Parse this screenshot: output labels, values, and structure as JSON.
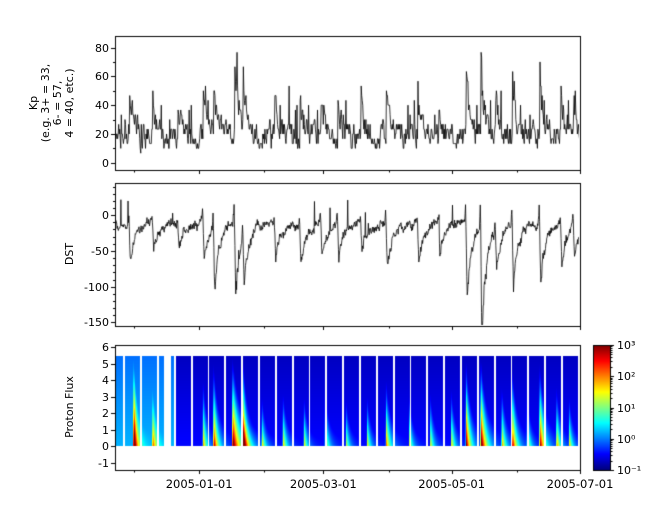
{
  "figure": {
    "background": "#ffffff",
    "x_axis": {
      "min_day": -40,
      "max_day": 181,
      "major_ticks": [
        {
          "day": 0,
          "label": "2005-01-01"
        },
        {
          "day": 59,
          "label": "2005-03-01"
        },
        {
          "day": 120,
          "label": "2005-05-01"
        },
        {
          "day": 181,
          "label": "2005-07-01"
        }
      ],
      "minor_tick_days": [
        -31,
        31,
        90,
        151
      ]
    }
  },
  "chart_data": [
    {
      "id": "kp",
      "type": "line",
      "ylabel_lines": [
        "Kp",
        "(e.g. 3+ = 33,",
        "6- = 57,",
        "4 = 40, etc.)"
      ],
      "ylim": [
        -5,
        88
      ],
      "yticks": [
        0,
        20,
        40,
        60,
        80
      ],
      "yminor_step": 10,
      "line_color": "#000000",
      "synthesis": {
        "seed": 20050101,
        "step_days": 0.25,
        "base_level": 20,
        "quantize": 3.3333
      },
      "storms": [
        {
          "day": -33,
          "kp": 38
        },
        {
          "day": -22,
          "kp": 30
        },
        {
          "day": -10,
          "kp": 25
        },
        {
          "day": 2,
          "kp": 40
        },
        {
          "day": 7,
          "kp": 48
        },
        {
          "day": 17,
          "kp": 60
        },
        {
          "day": 21,
          "kp": 45
        },
        {
          "day": 36,
          "kp": 30
        },
        {
          "day": 48,
          "kp": 35
        },
        {
          "day": 58,
          "kp": 30
        },
        {
          "day": 66,
          "kp": 35
        },
        {
          "day": 77,
          "kp": 30
        },
        {
          "day": 89,
          "kp": 48
        },
        {
          "day": 104,
          "kp": 32
        },
        {
          "day": 114,
          "kp": 28
        },
        {
          "day": 127,
          "kp": 60
        },
        {
          "day": 134,
          "kp": 62
        },
        {
          "day": 141,
          "kp": 35
        },
        {
          "day": 149,
          "kp": 48
        },
        {
          "day": 162,
          "kp": 55
        },
        {
          "day": 172,
          "kp": 38
        },
        {
          "day": 178,
          "kp": 30
        }
      ]
    },
    {
      "id": "dst",
      "type": "line",
      "ylabel_lines": [
        "DST"
      ],
      "ylim": [
        -155,
        45
      ],
      "yticks": [
        0,
        -50,
        -100,
        -150
      ],
      "yminor_step": 10,
      "line_color": "#000000",
      "synthesis": {
        "seed": 77,
        "step_days": 0.2,
        "base_level": -12,
        "recovery_days": 2.3
      },
      "storms": [
        {
          "day": -33,
          "depth": 55,
          "ssc": 15
        },
        {
          "day": -22,
          "depth": 45,
          "ssc": 10
        },
        {
          "day": -10,
          "depth": 38,
          "ssc": 8
        },
        {
          "day": 2,
          "depth": 60,
          "ssc": 15
        },
        {
          "day": 7,
          "depth": 95,
          "ssc": 25
        },
        {
          "day": 17,
          "depth": 105,
          "ssc": 30
        },
        {
          "day": 21,
          "depth": 80,
          "ssc": 20
        },
        {
          "day": 36,
          "depth": 55,
          "ssc": 10
        },
        {
          "day": 48,
          "depth": 60,
          "ssc": 12
        },
        {
          "day": 58,
          "depth": 48,
          "ssc": 10
        },
        {
          "day": 66,
          "depth": 55,
          "ssc": 10
        },
        {
          "day": 77,
          "depth": 45,
          "ssc": 8
        },
        {
          "day": 89,
          "depth": 70,
          "ssc": 18
        },
        {
          "day": 104,
          "depth": 55,
          "ssc": 10
        },
        {
          "day": 114,
          "depth": 45,
          "ssc": 8
        },
        {
          "day": 127,
          "depth": 110,
          "ssc": 30
        },
        {
          "day": 134,
          "depth": 165,
          "ssc": 40
        },
        {
          "day": 141,
          "depth": 60,
          "ssc": 10
        },
        {
          "day": 149,
          "depth": 95,
          "ssc": 20
        },
        {
          "day": 162,
          "depth": 95,
          "ssc": 25
        },
        {
          "day": 172,
          "depth": 65,
          "ssc": 12
        },
        {
          "day": 178,
          "depth": 50,
          "ssc": 10
        }
      ]
    },
    {
      "id": "proton_flux",
      "type": "heatmap",
      "ylabel_lines": [
        "Proton Flux"
      ],
      "ylim": [
        -1.45,
        6.15
      ],
      "yticks": [
        -1,
        0,
        1,
        2,
        3,
        4,
        5,
        6
      ],
      "data_y_range": [
        0,
        5.5
      ],
      "colormap": "jet",
      "background_levels": {
        "early": 0.3,
        "early_until_day": -12,
        "late": 0.13
      },
      "gaps": {
        "period_days": 8,
        "width_days": 0.9,
        "phase_day": -36,
        "extra": [
          [
            -16.5,
            -13.5
          ]
        ]
      },
      "events": [
        {
          "day": -31,
          "amp": 1.0,
          "height": 5.3,
          "tau": 2.0
        },
        {
          "day": -22,
          "amp": 0.55,
          "height": 3.5,
          "tau": 2.0
        },
        {
          "day": 2,
          "amp": 0.6,
          "height": 4.0,
          "tau": 2.2
        },
        {
          "day": 7,
          "amp": 0.85,
          "height": 5.0,
          "tau": 2.5
        },
        {
          "day": 16,
          "amp": 1.0,
          "height": 5.4,
          "tau": 4.0
        },
        {
          "day": 21,
          "amp": 0.95,
          "height": 5.2,
          "tau": 2.5
        },
        {
          "day": 30,
          "amp": 0.5,
          "height": 3.0,
          "tau": 2.0
        },
        {
          "day": 40,
          "amp": 0.55,
          "height": 3.2,
          "tau": 2.2
        },
        {
          "day": 50,
          "amp": 0.5,
          "height": 3.0,
          "tau": 2.0
        },
        {
          "day": 60,
          "amp": 0.55,
          "height": 3.4,
          "tau": 2.2
        },
        {
          "day": 70,
          "amp": 0.45,
          "height": 2.8,
          "tau": 2.0
        },
        {
          "day": 80,
          "amp": 0.5,
          "height": 3.0,
          "tau": 2.0
        },
        {
          "day": 89,
          "amp": 0.65,
          "height": 4.0,
          "tau": 2.5
        },
        {
          "day": 100,
          "amp": 0.5,
          "height": 3.0,
          "tau": 2.0
        },
        {
          "day": 110,
          "amp": 0.5,
          "height": 3.2,
          "tau": 2.0
        },
        {
          "day": 120,
          "amp": 0.55,
          "height": 3.4,
          "tau": 2.0
        },
        {
          "day": 127,
          "amp": 0.9,
          "height": 5.2,
          "tau": 2.5
        },
        {
          "day": 134,
          "amp": 1.0,
          "height": 5.4,
          "tau": 3.0
        },
        {
          "day": 144,
          "amp": 0.6,
          "height": 3.6,
          "tau": 2.2
        },
        {
          "day": 149,
          "amp": 0.8,
          "height": 4.6,
          "tau": 2.5
        },
        {
          "day": 156,
          "amp": 0.55,
          "height": 3.2,
          "tau": 2.0
        },
        {
          "day": 162,
          "amp": 0.9,
          "height": 5.0,
          "tau": 2.8
        },
        {
          "day": 170,
          "amp": 0.6,
          "height": 3.6,
          "tau": 2.2
        },
        {
          "day": 176,
          "amp": 0.5,
          "height": 3.0,
          "tau": 2.0
        }
      ],
      "colorbar": {
        "scale": "log",
        "ticks": [
          {
            "exp": 3,
            "label": "10³"
          },
          {
            "exp": 2,
            "label": "10²"
          },
          {
            "exp": 1,
            "label": "10¹"
          },
          {
            "exp": 0,
            "label": "10⁰"
          },
          {
            "exp": -1,
            "label": "10⁻¹"
          }
        ]
      }
    }
  ]
}
